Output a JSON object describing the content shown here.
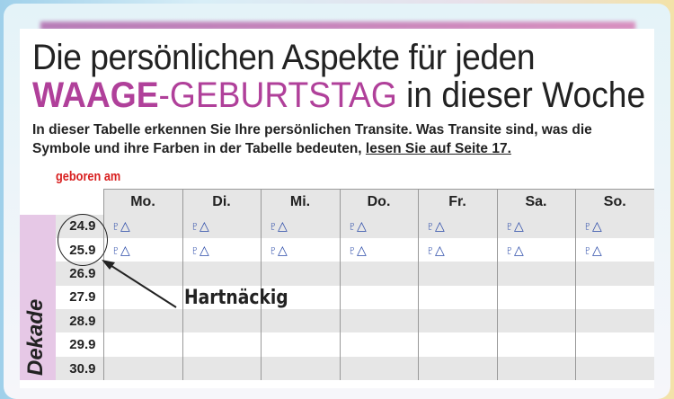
{
  "title": {
    "line1": "Die persönlichen Aspekte für jeden",
    "line2_sign": "WAAGE",
    "line2_birthday": "-GEBURTSTAG",
    "line2_rest": " in dieser Woche"
  },
  "intro": {
    "text": "In dieser Tabelle erkennen Sie Ihre persönlichen Transite. Was Transite sind, was die Symbole und ihre Farben in der Tabelle bedeuten, ",
    "link": "lesen Sie auf Seite 17."
  },
  "table": {
    "born_label": "geboren am",
    "group_label": "Dekade",
    "days": [
      "Mo.",
      "Di.",
      "Mi.",
      "Do.",
      "Fr.",
      "Sa.",
      "So."
    ],
    "rows": [
      {
        "date": "24.9",
        "cells": [
          "♇△",
          "♇△",
          "♇△",
          "♇△",
          "♇△",
          "♇△",
          "♇△"
        ]
      },
      {
        "date": "25.9",
        "cells": [
          "♇△",
          "♇△",
          "♇△",
          "♇△",
          "♇△",
          "♇△",
          "♇△"
        ]
      },
      {
        "date": "26.9",
        "cells": [
          "",
          "",
          "",
          "",
          "",
          "",
          ""
        ]
      },
      {
        "date": "27.9",
        "cells": [
          "",
          "",
          "",
          "",
          "",
          "",
          ""
        ]
      },
      {
        "date": "28.9",
        "cells": [
          "",
          "",
          "",
          "",
          "",
          "",
          ""
        ]
      },
      {
        "date": "29.9",
        "cells": [
          "",
          "",
          "",
          "",
          "",
          "",
          ""
        ]
      },
      {
        "date": "30.9",
        "cells": [
          "",
          "",
          "",
          "",
          "",
          "",
          ""
        ]
      }
    ]
  },
  "annotation": "Hartnäckig",
  "colors": {
    "accent": "#b0409a",
    "aspect": "#2a4aa8",
    "marker": "#e41e1e",
    "dekade_bg": "#e6c8e6"
  }
}
